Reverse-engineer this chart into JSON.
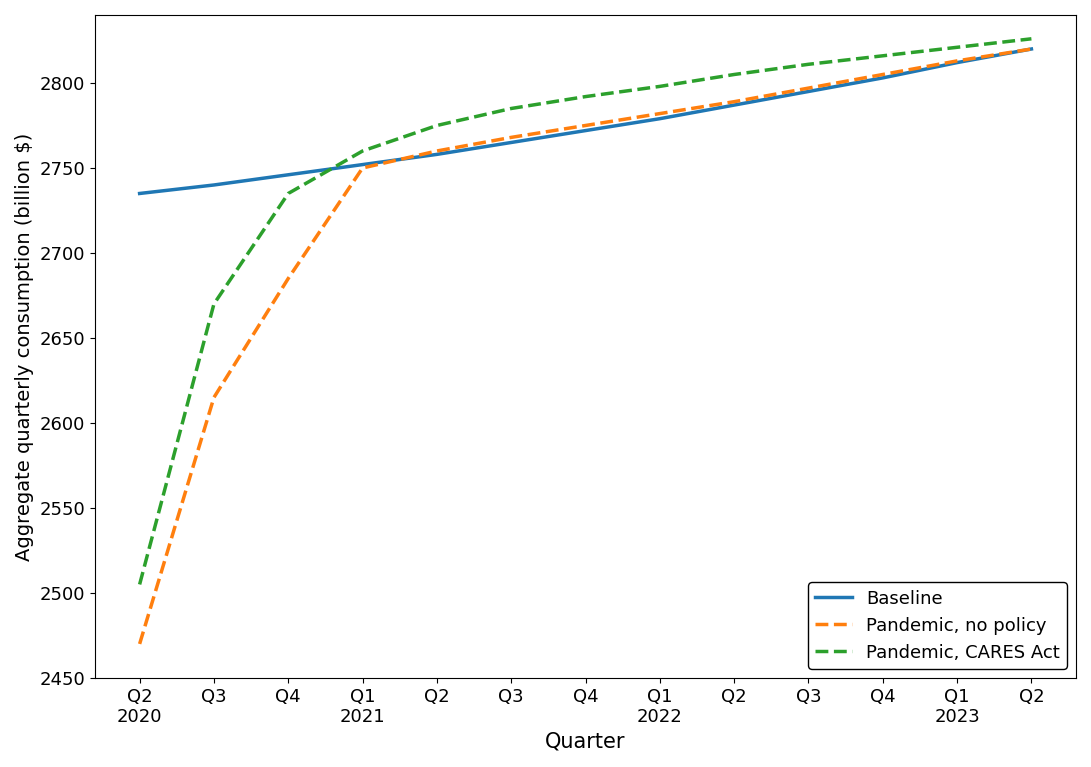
{
  "x_positions": [
    0,
    1,
    2,
    3,
    4,
    5,
    6,
    7,
    8,
    9,
    10,
    11,
    12
  ],
  "quarter_labels": [
    "Q2",
    "Q3",
    "Q4",
    "Q1",
    "Q2",
    "Q3",
    "Q4",
    "Q1",
    "Q2",
    "Q3",
    "Q4",
    "Q1",
    "Q2"
  ],
  "year_labels": [
    "2020",
    "",
    "",
    "2021",
    "",
    "",
    "",
    "2022",
    "",
    "",
    "",
    "2023",
    ""
  ],
  "baseline": [
    2735,
    2740,
    2746,
    2752,
    2758,
    2765,
    2772,
    2779,
    2787,
    2795,
    2803,
    2812,
    2820
  ],
  "pandemic_no_policy": [
    2470,
    2615,
    2685,
    2750,
    2760,
    2768,
    2775,
    2782,
    2789,
    2797,
    2805,
    2813,
    2820
  ],
  "pandemic_cares": [
    2505,
    2670,
    2735,
    2760,
    2775,
    2785,
    2792,
    2798,
    2805,
    2811,
    2816,
    2821,
    2826
  ],
  "baseline_color": "#1f77b4",
  "no_policy_color": "#ff7f0e",
  "cares_color": "#2ca02c",
  "xlabel": "Quarter",
  "ylabel": "Aggregate quarterly consumption (billion $)",
  "ylim": [
    2450,
    2840
  ],
  "legend_labels": [
    "Baseline",
    "Pandemic, no policy",
    "Pandemic, CARES Act"
  ],
  "legend_loc": "lower right",
  "figsize": [
    10.91,
    7.67
  ],
  "dpi": 100
}
